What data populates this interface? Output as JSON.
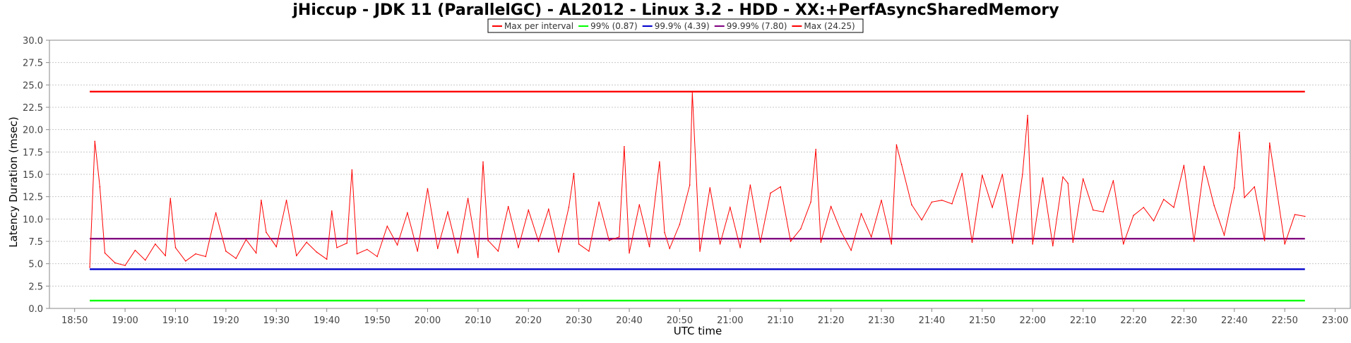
{
  "chart_data": {
    "type": "line",
    "title": "jHiccup - JDK 11 (ParallelGC) - AL2012 - Linux 3.2 - HDD - XX:+PerfAsyncSharedMemory",
    "xlabel": "UTC time",
    "ylabel": "Latency Duration (msec)",
    "ylim": [
      0,
      30
    ],
    "yticks": [
      "0.0",
      "2.5",
      "5.0",
      "7.5",
      "10.0",
      "12.5",
      "15.0",
      "17.5",
      "20.0",
      "22.5",
      "25.0",
      "27.5",
      "30.0"
    ],
    "xlim": [
      "18:45",
      "23:03"
    ],
    "xticks": [
      "18:50",
      "19:00",
      "19:10",
      "19:20",
      "19:30",
      "19:40",
      "19:50",
      "20:00",
      "20:10",
      "20:20",
      "20:30",
      "20:40",
      "20:50",
      "21:00",
      "21:10",
      "21:20",
      "21:30",
      "21:40",
      "21:50",
      "22:00",
      "22:10",
      "22:20",
      "22:30",
      "22:40",
      "22:50",
      "23:00"
    ],
    "grid": true,
    "legend_position": "top-center",
    "colors": {
      "max_per_interval": "#ff0000",
      "p99": "#00ff00",
      "p999": "#0000cc",
      "p9999": "#800080",
      "max": "#ff0000"
    },
    "series": [
      {
        "name": "Max per interval",
        "key": "max_per_interval",
        "x": [
          "18:53",
          "18:54",
          "18:55",
          "18:56",
          "18:58",
          "19:00",
          "19:02",
          "19:04",
          "19:06",
          "19:08",
          "19:09",
          "19:10",
          "19:12",
          "19:14",
          "19:16",
          "19:18",
          "19:20",
          "19:22",
          "19:24",
          "19:26",
          "19:27",
          "19:28",
          "19:30",
          "19:32",
          "19:34",
          "19:36",
          "19:38",
          "19:40",
          "19:41",
          "19:42",
          "19:44",
          "19:45",
          "19:46",
          "19:48",
          "19:50",
          "19:52",
          "19:54",
          "19:56",
          "19:58",
          "20:00",
          "20:02",
          "20:04",
          "20:06",
          "20:08",
          "20:10",
          "20:11",
          "20:12",
          "20:14",
          "20:16",
          "20:18",
          "20:20",
          "20:22",
          "20:24",
          "20:26",
          "20:28",
          "20:29",
          "20:30",
          "20:32",
          "20:34",
          "20:36",
          "20:38",
          "20:39",
          "20:40",
          "20:42",
          "20:44",
          "20:46",
          "20:47",
          "20:48",
          "20:50",
          "20:52",
          "20:52.5",
          "20:54",
          "20:56",
          "20:58",
          "21:00",
          "21:02",
          "21:04",
          "21:06",
          "21:08",
          "21:10",
          "21:12",
          "21:14",
          "21:16",
          "21:17",
          "21:18",
          "21:20",
          "21:22",
          "21:24",
          "21:26",
          "21:28",
          "21:30",
          "21:32",
          "21:33",
          "21:34",
          "21:36",
          "21:38",
          "21:40",
          "21:42",
          "21:44",
          "21:46",
          "21:48",
          "21:50",
          "21:52",
          "21:54",
          "21:56",
          "21:58",
          "21:59",
          "22:00",
          "22:02",
          "22:04",
          "22:06",
          "22:07",
          "22:08",
          "22:10",
          "22:12",
          "22:14",
          "22:16",
          "22:18",
          "22:20",
          "22:22",
          "22:24",
          "22:26",
          "22:28",
          "22:30",
          "22:32",
          "22:34",
          "22:36",
          "22:38",
          "22:40",
          "22:41",
          "22:42",
          "22:44",
          "22:46",
          "22:47",
          "22:48",
          "22:50",
          "22:52",
          "22:54"
        ],
        "values": [
          4.6,
          18.7,
          13.6,
          6.2,
          5.1,
          4.8,
          6.5,
          5.4,
          7.2,
          5.9,
          12.3,
          6.8,
          5.3,
          6.1,
          5.8,
          10.7,
          6.4,
          5.6,
          7.7,
          6.2,
          12.1,
          8.5,
          6.9,
          12.1,
          5.9,
          7.4,
          6.3,
          5.5,
          10.9,
          6.8,
          7.3,
          15.5,
          6.1,
          6.6,
          5.8,
          9.2,
          7.1,
          10.7,
          6.4,
          13.4,
          6.7,
          10.8,
          6.2,
          12.3,
          5.7,
          16.4,
          7.6,
          6.4,
          11.4,
          6.8,
          11.0,
          7.5,
          11.1,
          6.3,
          11.3,
          15.1,
          7.2,
          6.4,
          11.9,
          7.6,
          8.0,
          18.1,
          6.2,
          11.6,
          6.9,
          16.4,
          8.5,
          6.7,
          9.4,
          13.8,
          24.2,
          6.4,
          13.5,
          7.2,
          11.3,
          6.8,
          13.8,
          7.4,
          12.9,
          13.6,
          7.5,
          8.9,
          11.9,
          17.8,
          7.4,
          11.4,
          8.6,
          6.5,
          10.6,
          8.0,
          12.1,
          7.2,
          18.3,
          16.1,
          11.6,
          9.9,
          11.9,
          12.1,
          11.7,
          15.1,
          7.4,
          14.9,
          11.3,
          15.0,
          7.3,
          15.0,
          21.6,
          7.2,
          14.6,
          7.0,
          14.7,
          14.0,
          7.4,
          14.5,
          11.0,
          10.8,
          14.3,
          7.2,
          10.4,
          11.3,
          9.8,
          12.2,
          11.3,
          16.0,
          7.5,
          15.9,
          11.5,
          8.2,
          13.5,
          19.7,
          12.4,
          13.6,
          7.6,
          18.5,
          14.8,
          7.2,
          10.5,
          10.3
        ]
      },
      {
        "name": "99% (0.87)",
        "key": "p99",
        "value": 0.87
      },
      {
        "name": "99.9% (4.39)",
        "key": "p999",
        "value": 4.39
      },
      {
        "name": "99.99% (7.80)",
        "key": "p9999",
        "value": 7.8
      },
      {
        "name": "Max (24.25)",
        "key": "max",
        "value": 24.25
      }
    ],
    "reference_lines_x_range": [
      "18:53",
      "22:54"
    ]
  }
}
